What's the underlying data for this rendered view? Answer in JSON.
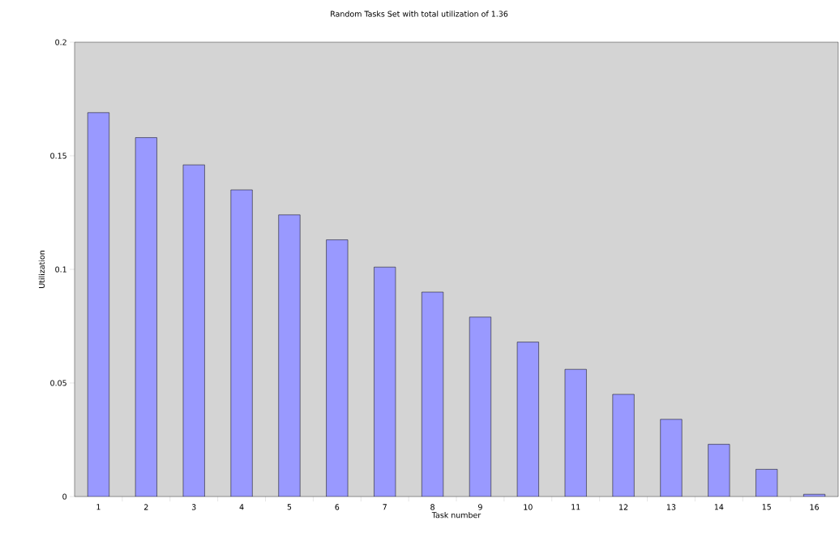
{
  "chart_data": {
    "type": "bar",
    "title": "Random Tasks Set with total utilization of 1.36",
    "xlabel": "Task number",
    "ylabel": "Utilization",
    "categories": [
      "1",
      "2",
      "3",
      "4",
      "5",
      "6",
      "7",
      "8",
      "9",
      "10",
      "11",
      "12",
      "13",
      "14",
      "15",
      "16"
    ],
    "values": [
      0.169,
      0.158,
      0.146,
      0.135,
      0.124,
      0.113,
      0.101,
      0.09,
      0.079,
      0.068,
      0.056,
      0.045,
      0.034,
      0.023,
      0.012,
      0.001
    ],
    "color": "#9999ff",
    "ylim": [
      0,
      0.2
    ],
    "yticks": [
      0,
      0.05,
      0.1,
      0.15,
      0.2
    ]
  }
}
